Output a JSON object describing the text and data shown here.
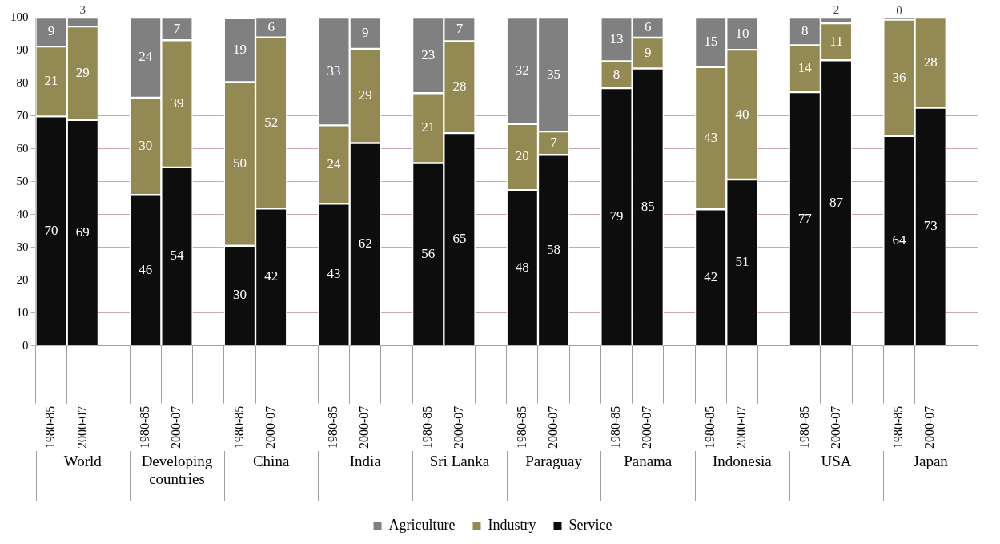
{
  "chart_data": {
    "type": "bar",
    "stacked": true,
    "categories": [
      "1980-85",
      "2000-07",
      null,
      "1980-85",
      "2000-07",
      null,
      "1980-85",
      "2000-07",
      null,
      "1980-85",
      "2000-07",
      null,
      "1980-85",
      "2000-07",
      null,
      "1980-85",
      "2000-07",
      null,
      "1980-85",
      "2000-07",
      null,
      "1980-85",
      "2000-07",
      null,
      "1980-85",
      "2000-07",
      null,
      "1980-85",
      "2000-07",
      null
    ],
    "series": [
      {
        "name": "Service",
        "color": "#0d0d0d",
        "values": [
          69.9,
          68.8,
          null,
          46.0,
          54.4,
          null,
          30.5,
          41.8,
          null,
          43.3,
          61.8,
          null,
          55.7,
          64.8,
          null,
          47.5,
          58.2,
          null,
          78.5,
          84.5,
          null,
          41.6,
          50.7,
          null,
          77.3,
          87.0,
          null,
          63.9,
          72.5,
          null
        ],
        "value_labels": [
          "70",
          "69",
          null,
          "46",
          "54",
          null,
          "30",
          "42",
          null,
          "43",
          "62",
          null,
          "56",
          "65",
          null,
          "48",
          "58",
          null,
          "79",
          "85",
          null,
          "42",
          "51",
          null,
          "77",
          "87",
          null,
          "64",
          "73",
          null
        ]
      },
      {
        "name": "Industry",
        "color": "#938953",
        "values": [
          21.3,
          28.5,
          null,
          29.6,
          38.7,
          null,
          49.9,
          52.2,
          null,
          23.9,
          28.7,
          null,
          21.3,
          28.0,
          null,
          20.1,
          7.1,
          null,
          8.2,
          9.4,
          null,
          43.3,
          39.5,
          null,
          14.3,
          11.3,
          null,
          35.5,
          27.5,
          null
        ],
        "value_labels": [
          "21",
          "29",
          null,
          "30",
          "39",
          null,
          "50",
          "52",
          null,
          "24",
          "29",
          null,
          "21",
          "28",
          null,
          "20",
          "7",
          null,
          "8",
          "9",
          null,
          "43",
          "40",
          null,
          "14",
          "11",
          null,
          "36",
          "28",
          null
        ]
      },
      {
        "name": "Agriculture",
        "color": "#808080",
        "values": [
          8.8,
          2.7,
          null,
          24.4,
          6.9,
          null,
          19.4,
          6.0,
          null,
          32.8,
          9.5,
          null,
          23.0,
          7.2,
          null,
          32.4,
          34.7,
          null,
          13.3,
          6.1,
          null,
          15.1,
          9.8,
          null,
          8.4,
          1.7,
          null,
          0.4,
          0,
          null
        ],
        "value_labels": [
          "9",
          "3",
          null,
          "24",
          "7",
          null,
          "19",
          "6",
          null,
          "33",
          "9",
          null,
          "23",
          "7",
          null,
          "32",
          "35",
          null,
          "13",
          "6",
          null,
          "15",
          "10",
          null,
          "8",
          "2",
          null,
          "0",
          null,
          null
        ]
      }
    ],
    "ylim": [
      0,
      100
    ],
    "yticks": [
      0,
      10,
      20,
      30,
      40,
      50,
      60,
      70,
      80,
      90,
      100
    ],
    "grid": "y",
    "legend": "bottom",
    "annotations": [
      "World",
      "Developing countries",
      "China",
      "India",
      "Sri Lanka",
      "Paraguay",
      "Panama",
      "Indonesia",
      "USA",
      "Japan"
    ]
  }
}
